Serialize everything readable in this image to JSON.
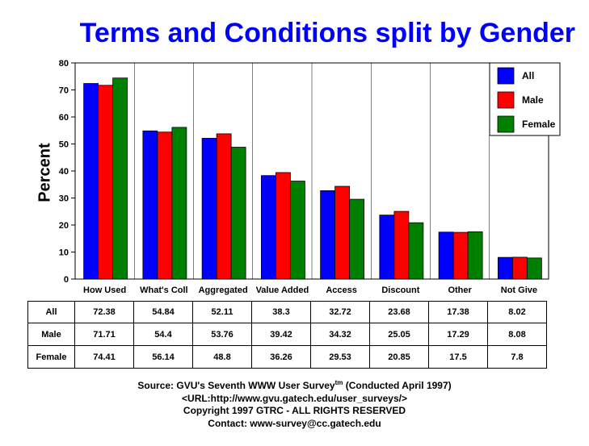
{
  "chart_data": {
    "type": "bar",
    "title": "Terms and Conditions split by Gender",
    "ylabel": "Percent",
    "xlabel": "",
    "ylim": [
      0,
      80
    ],
    "yticks": [
      0,
      10,
      20,
      30,
      40,
      50,
      60,
      70,
      80
    ],
    "categories": [
      "How Used",
      "What's Coll",
      "Aggregated",
      "Value Added",
      "Access",
      "Discount",
      "Other",
      "Not Give"
    ],
    "series": [
      {
        "name": "All",
        "color": "#0000ff",
        "values": [
          72.38,
          54.84,
          52.11,
          38.3,
          32.72,
          23.68,
          17.38,
          8.02
        ]
      },
      {
        "name": "Male",
        "color": "#ff0000",
        "values": [
          71.71,
          54.4,
          53.76,
          39.42,
          34.32,
          25.05,
          17.29,
          8.08
        ]
      },
      {
        "name": "Female",
        "color": "#008000",
        "values": [
          74.41,
          56.14,
          48.8,
          36.26,
          29.53,
          20.85,
          17.5,
          7.8
        ]
      }
    ],
    "legend_position": "top-right",
    "grid": "vertical",
    "table": {
      "rows": [
        {
          "label": "All",
          "values": [
            "72.38",
            "54.84",
            "52.11",
            "38.3",
            "32.72",
            "23.68",
            "17.38",
            "8.02"
          ]
        },
        {
          "label": "Male",
          "values": [
            "71.71",
            "54.4",
            "53.76",
            "39.42",
            "34.32",
            "25.05",
            "17.29",
            "8.08"
          ]
        },
        {
          "label": "Female",
          "values": [
            "74.41",
            "56.14",
            "48.8",
            "36.26",
            "29.53",
            "20.85",
            "17.5",
            "7.8"
          ]
        }
      ]
    }
  },
  "footer": {
    "source_prefix": "Source: GVU's Seventh WWW User Survey",
    "source_sup": "tm",
    "source_suffix": " (Conducted April 1997)",
    "url": "<URL:http://www.gvu.gatech.edu/user_surveys/>",
    "copyright": "Copyright 1997 GTRC - ALL RIGHTS RESERVED",
    "contact": "Contact: www-survey@cc.gatech.edu"
  }
}
